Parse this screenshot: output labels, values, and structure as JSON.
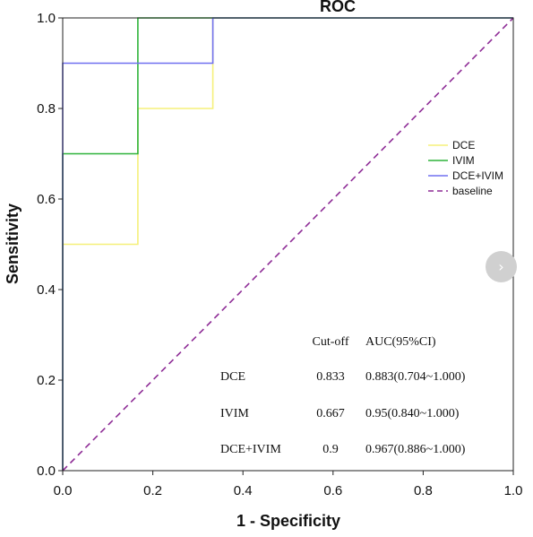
{
  "chart_data": {
    "type": "line",
    "title": "ROC",
    "xlabel": "1 - Specificity",
    "ylabel": "Sensitivity",
    "xlim": [
      0,
      1
    ],
    "ylim": [
      0,
      1
    ],
    "x_ticks": [
      "0.0",
      "0.2",
      "0.4",
      "0.6",
      "0.8",
      "1.0"
    ],
    "y_ticks": [
      "0.0",
      "0.2",
      "0.4",
      "0.6",
      "0.8",
      "1.0"
    ],
    "grid": false,
    "legend_position": "right",
    "series": [
      {
        "name": "DCE",
        "color": "#f5f07a",
        "style": "solid",
        "points": [
          [
            0,
            0
          ],
          [
            0,
            0.5
          ],
          [
            0.1667,
            0.5
          ],
          [
            0.1667,
            0.8
          ],
          [
            0.3333,
            0.8
          ],
          [
            0.3333,
            1.0
          ],
          [
            1.0,
            1.0
          ]
        ]
      },
      {
        "name": "IVIM",
        "color": "#2eb33a",
        "style": "solid",
        "points": [
          [
            0,
            0
          ],
          [
            0,
            0.7
          ],
          [
            0.1667,
            0.7
          ],
          [
            0.1667,
            1.0
          ],
          [
            1.0,
            1.0
          ]
        ]
      },
      {
        "name": "DCE+IVIM",
        "color": "#7070f0",
        "style": "solid",
        "points": [
          [
            0,
            0
          ],
          [
            0,
            0.9
          ],
          [
            0.3333,
            0.9
          ],
          [
            0.3333,
            1.0
          ],
          [
            1.0,
            1.0
          ]
        ]
      },
      {
        "name": "baseline",
        "color": "#8e2c96",
        "style": "dashed",
        "points": [
          [
            0,
            0
          ],
          [
            1,
            1
          ]
        ]
      }
    ],
    "table": {
      "headers": [
        "",
        "Cut-off",
        "AUC(95%CI)"
      ],
      "rows": [
        [
          "DCE",
          "0.833",
          "0.883(0.704~1.000)"
        ],
        [
          "IVIM",
          "0.667",
          "0.95(0.840~1.000)"
        ],
        [
          "DCE+IVIM",
          "0.9",
          "0.967(0.886~1.000)"
        ]
      ]
    }
  },
  "nav": {
    "next_icon": "›"
  }
}
